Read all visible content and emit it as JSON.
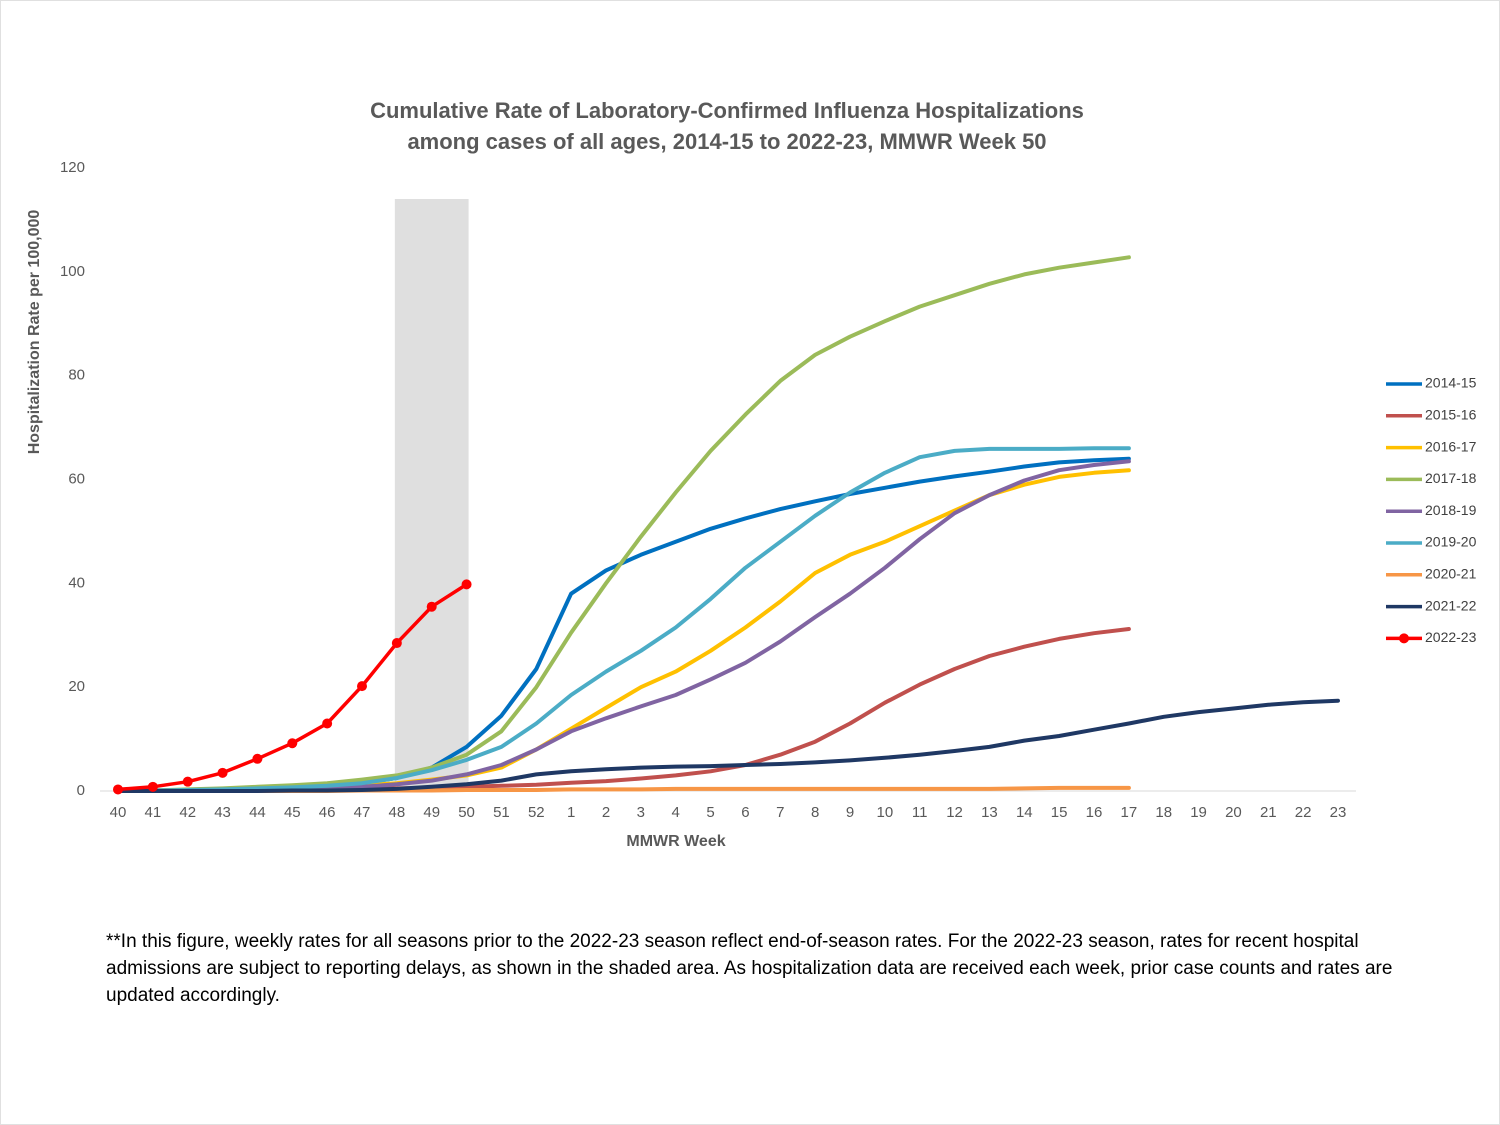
{
  "chart_data": {
    "type": "line",
    "title": [
      "Cumulative Rate of Laboratory-Confirmed Influenza Hospitalizations",
      "among cases of all ages, 2014-15 to 2022-23, MMWR Week 50"
    ],
    "x_label": "MMWR Week",
    "y_label": "Hospitalization  Rate per 100,000",
    "categories": [
      "40",
      "41",
      "42",
      "43",
      "44",
      "45",
      "46",
      "47",
      "48",
      "49",
      "50",
      "51",
      "52",
      "1",
      "2",
      "3",
      "4",
      "5",
      "6",
      "7",
      "8",
      "9",
      "10",
      "11",
      "12",
      "13",
      "14",
      "15",
      "16",
      "17",
      "18",
      "19",
      "20",
      "21",
      "22",
      "23"
    ],
    "ylim": [
      0,
      120
    ],
    "yticks": [
      0,
      20,
      40,
      60,
      80,
      100,
      120
    ],
    "grid": false,
    "legend": "right",
    "shaded_weeks": [
      "48",
      "50"
    ],
    "series": [
      {
        "name": "2014-15",
        "color": "#0070c0",
        "values": [
          0,
          0.1,
          0.2,
          0.3,
          0.5,
          0.7,
          1,
          1.5,
          2.5,
          4.5,
          8.5,
          14.5,
          23.5,
          38,
          42.5,
          45.5,
          48,
          50.5,
          52.5,
          54.3,
          55.8,
          57.2,
          58.4,
          59.6,
          60.6,
          61.5,
          62.5,
          63.3,
          63.7,
          64,
          null,
          null,
          null,
          null,
          null,
          null
        ]
      },
      {
        "name": "2015-16",
        "color": "#c0504d",
        "values": [
          0,
          0,
          0.1,
          0.1,
          0.2,
          0.2,
          0.3,
          0.4,
          0.5,
          0.6,
          0.8,
          1,
          1.2,
          1.6,
          1.9,
          2.4,
          3,
          3.8,
          5,
          7,
          9.5,
          13,
          17,
          20.5,
          23.5,
          26,
          27.8,
          29.3,
          30.4,
          31.2,
          null,
          null,
          null,
          null,
          null,
          null
        ]
      },
      {
        "name": "2016-17",
        "color": "#ffc000",
        "values": [
          0,
          0.1,
          0.2,
          0.3,
          0.4,
          0.6,
          0.8,
          1.1,
          1.5,
          2.2,
          3,
          4.5,
          8,
          12,
          16,
          20,
          23,
          27,
          31.5,
          36.5,
          42,
          45.5,
          48,
          51,
          54,
          57,
          59,
          60.5,
          61.3,
          61.8,
          null,
          null,
          null,
          null,
          null,
          null
        ]
      },
      {
        "name": "2017-18",
        "color": "#9bbb59",
        "values": [
          0,
          0.1,
          0.3,
          0.5,
          0.8,
          1.1,
          1.5,
          2.2,
          3,
          4.5,
          7,
          11.5,
          20,
          30.5,
          40,
          49,
          57.5,
          65.5,
          72.5,
          79,
          84,
          87.5,
          90.5,
          93.3,
          95.5,
          97.7,
          99.5,
          100.8,
          101.8,
          102.8,
          null,
          null,
          null,
          null,
          null,
          null
        ]
      },
      {
        "name": "2018-19",
        "color": "#8064a2",
        "values": [
          0,
          0,
          0.1,
          0.1,
          0.2,
          0.3,
          0.5,
          0.8,
          1.3,
          2,
          3.2,
          5,
          8,
          11.5,
          14,
          16.3,
          18.5,
          21.5,
          24.7,
          28.8,
          33.5,
          38,
          43,
          48.5,
          53.5,
          57,
          59.8,
          61.8,
          62.8,
          63.5,
          null,
          null,
          null,
          null,
          null,
          null
        ]
      },
      {
        "name": "2019-20",
        "color": "#4bacc6",
        "values": [
          0,
          0.1,
          0.2,
          0.3,
          0.5,
          0.7,
          1,
          1.5,
          2.5,
          4,
          6,
          8.5,
          13,
          18.5,
          23,
          27,
          31.5,
          37,
          43,
          48,
          53,
          57.5,
          61.3,
          64.3,
          65.5,
          65.9,
          65.9,
          65.9,
          66,
          66,
          null,
          null,
          null,
          null,
          null,
          null
        ]
      },
      {
        "name": "2020-21",
        "color": "#f79646",
        "values": [
          0,
          0,
          0,
          0,
          0,
          0,
          0,
          0.1,
          0.1,
          0.1,
          0.2,
          0.2,
          0.2,
          0.3,
          0.3,
          0.3,
          0.4,
          0.4,
          0.4,
          0.4,
          0.4,
          0.4,
          0.4,
          0.4,
          0.4,
          0.4,
          0.5,
          0.6,
          0.6,
          0.6,
          null,
          null,
          null,
          null,
          null,
          null
        ]
      },
      {
        "name": "2021-22",
        "color": "#1f3864",
        "values": [
          0,
          0,
          0,
          0,
          0,
          0.1,
          0.1,
          0.2,
          0.4,
          0.8,
          1.3,
          2,
          3.2,
          3.8,
          4.2,
          4.5,
          4.7,
          4.8,
          5,
          5.2,
          5.5,
          5.9,
          6.4,
          7,
          7.7,
          8.5,
          9.7,
          10.6,
          11.8,
          13,
          14.3,
          15.2,
          15.9,
          16.6,
          17.1,
          17.4
        ]
      },
      {
        "name": "2022-23",
        "color": "#ff0000",
        "marker": true,
        "values": [
          0.3,
          0.8,
          1.8,
          3.5,
          6.2,
          9.2,
          13,
          20.2,
          28.5,
          35.5,
          39.8,
          null,
          null,
          null,
          null,
          null,
          null,
          null,
          null,
          null,
          null,
          null,
          null,
          null,
          null,
          null,
          null,
          null,
          null,
          null,
          null,
          null,
          null,
          null,
          null,
          null
        ]
      }
    ],
    "footnote": "**In this figure, weekly rates for all seasons prior to the 2022-23 season reflect end-of-season rates. For the 2022-23 season, rates for recent hospital admissions are subject to reporting delays, as shown in the shaded area. As hospitalization data are received each week, prior case counts and rates are updated accordingly."
  }
}
